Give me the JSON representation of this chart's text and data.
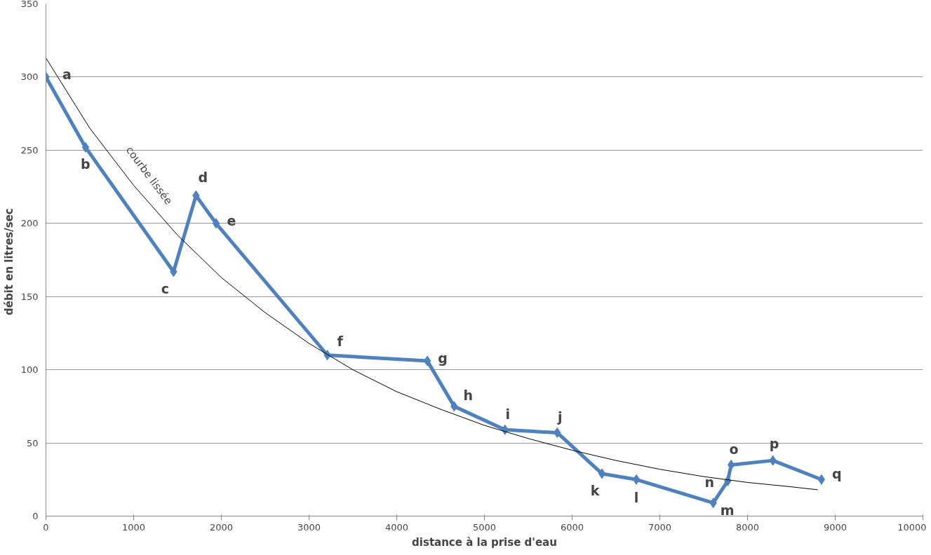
{
  "chart_data": {
    "type": "line",
    "xlabel": "distance à la prise d'eau",
    "ylabel": "débit  en litres/sec",
    "xlim": [
      0,
      10000
    ],
    "xticks": [
      0,
      1000,
      2000,
      3000,
      4000,
      5000,
      6000,
      7000,
      8000,
      9000,
      10000
    ],
    "ylim": [
      0,
      350
    ],
    "yticks": [
      0,
      50,
      100,
      150,
      200,
      250,
      300,
      350
    ],
    "grid": "y",
    "marker": "diamond",
    "line_style": "solid",
    "series": [
      {
        "color": "#4f81bd",
        "x": [
          0,
          451,
          1455,
          1711,
          1940,
          3209,
          4349,
          4655,
          5234,
          5830,
          6340,
          6732,
          7609,
          7774,
          7813,
          8289,
          8843
        ],
        "values": [
          300,
          252,
          167,
          219,
          200,
          110,
          106,
          75,
          59,
          57,
          29,
          25,
          9,
          24,
          35,
          38,
          25
        ]
      },
      {
        "color": "#000000",
        "marker": "none",
        "x": [
          0,
          500,
          1000,
          1500,
          2000,
          2500,
          3000,
          3500,
          4000,
          4500,
          5000,
          5500,
          6000,
          6500,
          7000,
          7500,
          8000,
          8500,
          8800
        ],
        "values": [
          313,
          265,
          226,
          192,
          163,
          139,
          118,
          100,
          85,
          73,
          62,
          53,
          45,
          38,
          32,
          27,
          23,
          20,
          18
        ]
      }
    ],
    "annotations": [
      {
        "text": "a",
        "x": 0,
        "y": 300
      },
      {
        "text": "b",
        "x": 451,
        "y": 252
      },
      {
        "text": "c",
        "x": 1455,
        "y": 167
      },
      {
        "text": "d",
        "x": 1711,
        "y": 219
      },
      {
        "text": "e",
        "x": 1940,
        "y": 200
      },
      {
        "text": "f",
        "x": 3209,
        "y": 110
      },
      {
        "text": "g",
        "x": 4349,
        "y": 106
      },
      {
        "text": "h",
        "x": 4655,
        "y": 75
      },
      {
        "text": "i",
        "x": 5234,
        "y": 59
      },
      {
        "text": "j",
        "x": 5830,
        "y": 57
      },
      {
        "text": "k",
        "x": 6340,
        "y": 29
      },
      {
        "text": "l",
        "x": 6732,
        "y": 25
      },
      {
        "text": "m",
        "x": 7609,
        "y": 9
      },
      {
        "text": "n",
        "x": 7774,
        "y": 24
      },
      {
        "text": "o",
        "x": 7813,
        "y": 35
      },
      {
        "text": "p",
        "x": 8289,
        "y": 38
      },
      {
        "text": "q",
        "x": 8843,
        "y": 25
      },
      {
        "text": "courbe lissée",
        "x": 1000,
        "y": 226
      }
    ]
  }
}
